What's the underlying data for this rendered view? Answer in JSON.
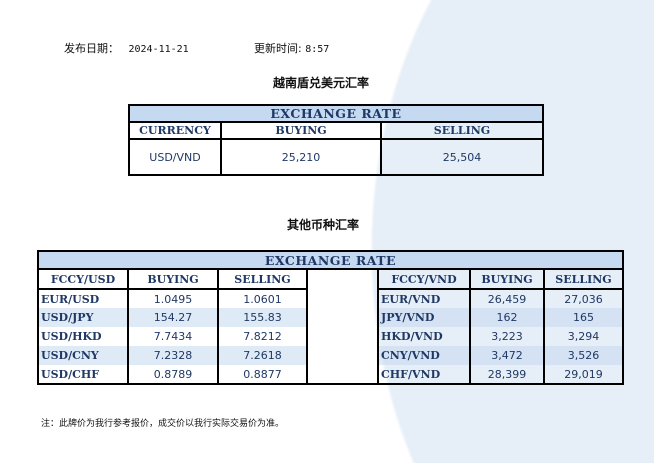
{
  "header": {
    "date_label": "发布日期：",
    "date": "2024-11-21",
    "time_label": "更新时间:",
    "time": "8:57"
  },
  "usd_vnd": {
    "title": "越南盾兑美元汇率",
    "table_title": "EXCHANGE RATE",
    "columns": [
      "CURRENCY",
      "BUYING",
      "SELLING"
    ],
    "row": {
      "pair": "USD/VND",
      "buying": "25,210",
      "selling": "25,504"
    }
  },
  "others": {
    "title": "其他币种汇率",
    "table_title": "EXCHANGE  RATE",
    "left_columns": [
      "FCCY/USD",
      "BUYING",
      "SELLING"
    ],
    "right_columns": [
      "FCCY/VND",
      "BUYING",
      "SELLING"
    ],
    "left_rows": [
      {
        "pair": "EUR/USD",
        "buying": "1.0495",
        "selling": "1.0601"
      },
      {
        "pair": "USD/JPY",
        "buying": "154.27",
        "selling": "155.83"
      },
      {
        "pair": "USD/HKD",
        "buying": "7.7434",
        "selling": "7.8212"
      },
      {
        "pair": "USD/CNY",
        "buying": "7.2328",
        "selling": "7.2618"
      },
      {
        "pair": "USD/CHF",
        "buying": "0.8789",
        "selling": "0.8877"
      }
    ],
    "right_rows": [
      {
        "pair": "EUR/VND",
        "buying": "26,459",
        "selling": "27,036"
      },
      {
        "pair": "JPY/VND",
        "buying": "162",
        "selling": "165"
      },
      {
        "pair": "HKD/VND",
        "buying": "3,223",
        "selling": "3,294"
      },
      {
        "pair": "CNY/VND",
        "buying": "3,472",
        "selling": "3,526"
      },
      {
        "pair": "CHF/VND",
        "buying": "28,399",
        "selling": "29,019"
      }
    ]
  },
  "note": "注：此牌价为我行参考报价，成交价以我行实际交易价为准。",
  "colors": {
    "header_fill": "#c5d9f1",
    "text": "#1f3864"
  }
}
